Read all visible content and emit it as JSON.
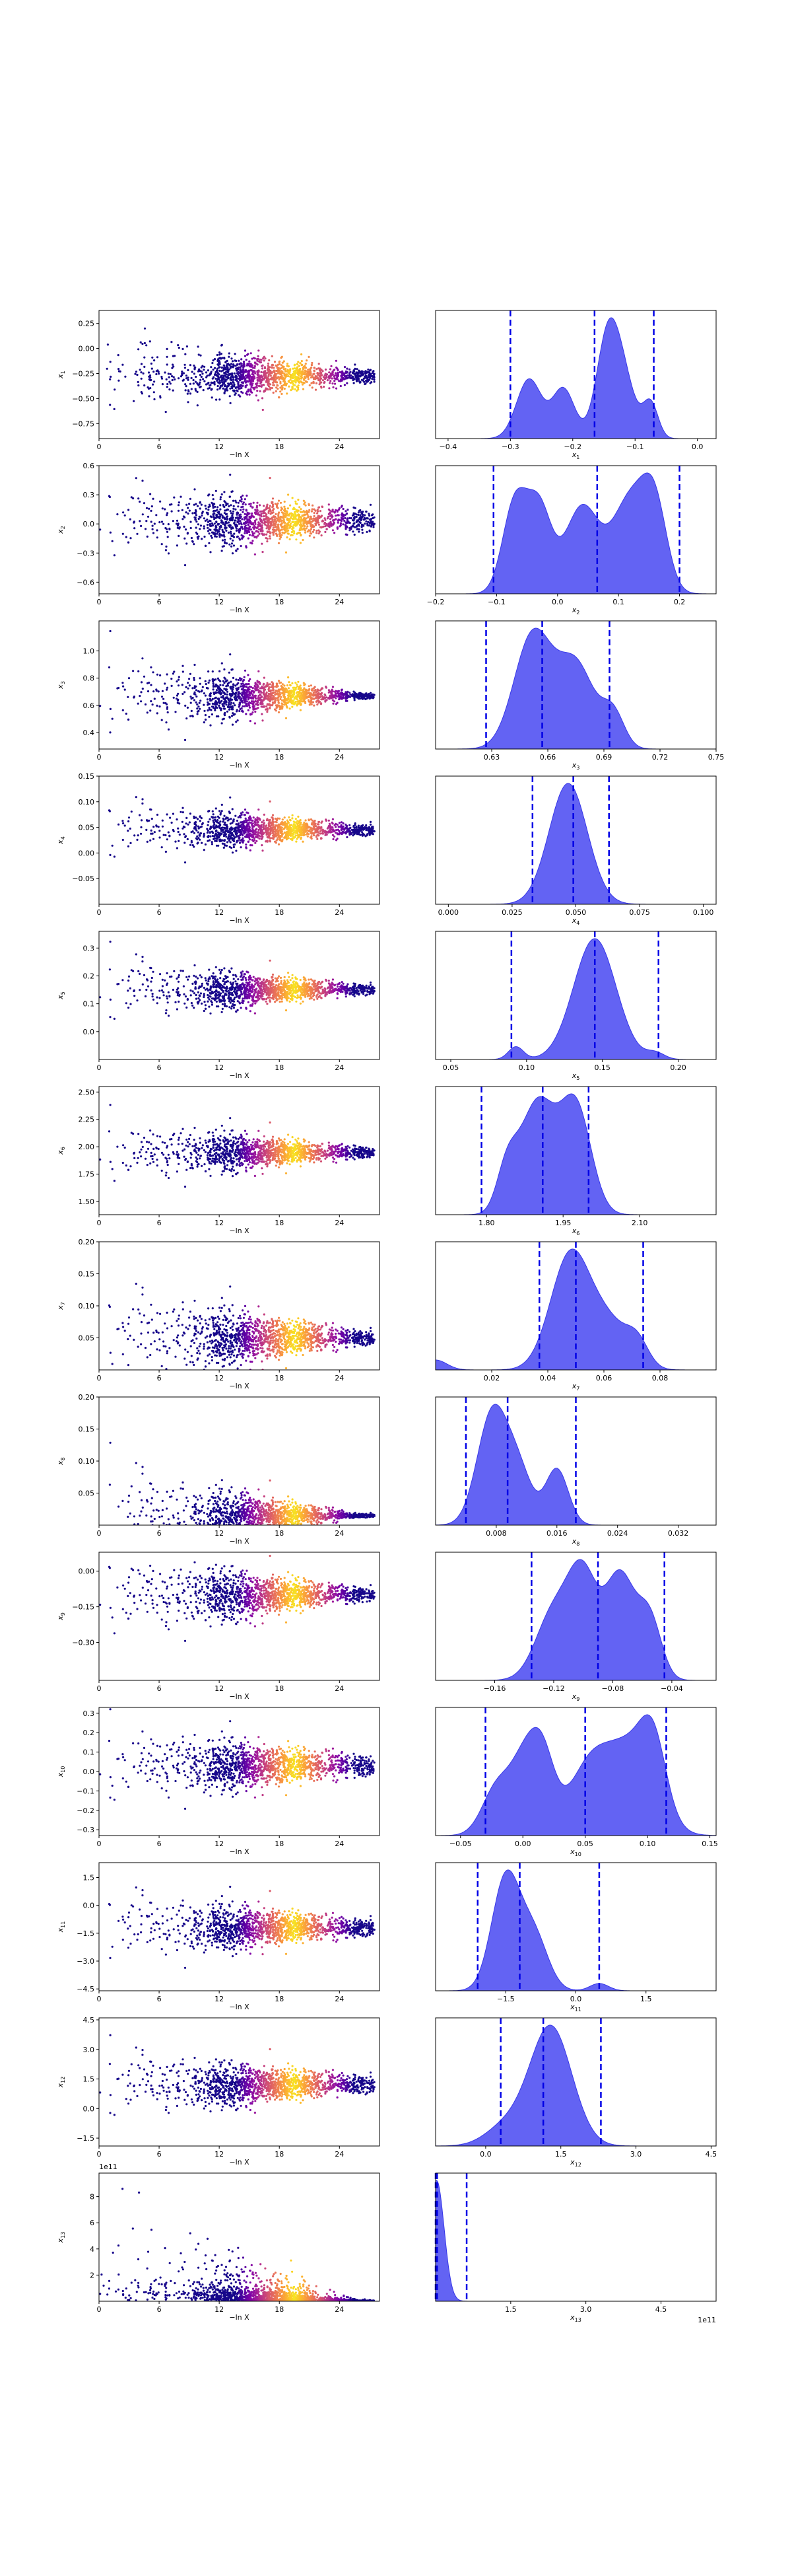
{
  "figure": {
    "xlabel_left": "−ln X",
    "left_xticks": [
      0,
      6,
      12,
      18,
      24
    ],
    "left_xlim": [
      0,
      28
    ],
    "colormap": [
      "#0d0887",
      "#4a02a0",
      "#7e03a8",
      "#a92395",
      "#cc4778",
      "#e66c5c",
      "#f89540",
      "#fdc527",
      "#f0f921"
    ]
  },
  "chart_data": [
    {
      "type": "scatter+density",
      "param": "x1",
      "xlabel": "x_1",
      "scatter": {
        "center": -0.27,
        "spread_start": 0.55,
        "spread_end": 0.1,
        "ylim": [
          -0.9,
          0.38
        ],
        "yticks": [
          0.25,
          0.0,
          -0.25,
          -0.5,
          -0.75
        ]
      },
      "posterior": {
        "xlim": [
          -0.42,
          0.03
        ],
        "xticks": [
          -0.4,
          -0.3,
          -0.2,
          -0.1,
          0.0
        ],
        "peaks": [
          [
            -0.27,
            0.02,
            0.62
          ],
          [
            -0.215,
            0.018,
            0.52
          ],
          [
            -0.145,
            0.018,
            0.93
          ],
          [
            -0.12,
            0.02,
            0.6
          ],
          [
            -0.075,
            0.012,
            0.36
          ]
        ],
        "quantiles": [
          -0.3,
          -0.165,
          -0.07
        ]
      }
    },
    {
      "type": "scatter+density",
      "param": "x2",
      "xlabel": "x_2",
      "scatter": {
        "center": 0.03,
        "spread_start": 0.6,
        "spread_end": 0.16,
        "ylim": [
          -0.72,
          0.6
        ],
        "yticks": [
          0.6,
          0.3,
          0.0,
          -0.3,
          -0.6
        ]
      },
      "posterior": {
        "xlim": [
          -0.2,
          0.26
        ],
        "xticks": [
          -0.2,
          -0.1,
          0.0,
          0.1,
          0.2
        ],
        "peaks": [
          [
            -0.07,
            0.02,
            0.78
          ],
          [
            -0.03,
            0.02,
            0.72
          ],
          [
            0.04,
            0.028,
            0.75
          ],
          [
            0.12,
            0.03,
            0.82
          ],
          [
            0.16,
            0.02,
            0.62
          ]
        ],
        "quantiles": [
          -0.105,
          0.065,
          0.2
        ]
      }
    },
    {
      "type": "scatter+density",
      "param": "x3",
      "xlabel": "x_3",
      "scatter": {
        "center": 0.67,
        "spread_start": 0.5,
        "spread_end": 0.03,
        "ylim": [
          0.28,
          1.22
        ],
        "yticks": [
          1.0,
          0.8,
          0.6,
          0.4
        ]
      },
      "posterior": {
        "xlim": [
          0.6,
          0.75
        ],
        "xticks": [
          0.63,
          0.66,
          0.69,
          0.72,
          0.75
        ],
        "peaks": [
          [
            0.652,
            0.01,
            0.95
          ],
          [
            0.675,
            0.01,
            0.7
          ],
          [
            0.695,
            0.006,
            0.28
          ]
        ],
        "quantiles": [
          0.627,
          0.657,
          0.693
        ]
      }
    },
    {
      "type": "scatter+density",
      "param": "x4",
      "xlabel": "x_4",
      "scatter": {
        "center": 0.045,
        "spread_start": 0.09,
        "spread_end": 0.015,
        "ylim": [
          -0.1,
          0.15
        ],
        "yticks": [
          0.15,
          0.1,
          0.05,
          0.0,
          -0.05
        ]
      },
      "posterior": {
        "xlim": [
          -0.005,
          0.105
        ],
        "xticks": [
          0.0,
          0.025,
          0.05,
          0.075,
          0.1
        ],
        "peaks": [
          [
            0.047,
            0.0075,
            0.95
          ]
        ],
        "quantiles": [
          0.033,
          0.049,
          0.063
        ]
      }
    },
    {
      "type": "scatter+density",
      "param": "x5",
      "xlabel": "x_5",
      "scatter": {
        "center": 0.15,
        "spread_start": 0.18,
        "spread_end": 0.025,
        "ylim": [
          -0.1,
          0.36
        ],
        "yticks": [
          0.3,
          0.2,
          0.1,
          0.0
        ]
      },
      "posterior": {
        "xlim": [
          0.04,
          0.225
        ],
        "xticks": [
          0.05,
          0.1,
          0.15,
          0.2
        ],
        "peaks": [
          [
            0.145,
            0.014,
            0.95
          ],
          [
            0.093,
            0.005,
            0.1
          ],
          [
            0.185,
            0.006,
            0.05
          ]
        ],
        "quantiles": [
          0.09,
          0.145,
          0.187
        ]
      }
    },
    {
      "type": "scatter+density",
      "param": "x6",
      "xlabel": "x_6",
      "scatter": {
        "center": 1.95,
        "spread_start": 0.45,
        "spread_end": 0.07,
        "ylim": [
          1.38,
          2.55
        ],
        "yticks": [
          2.5,
          2.25,
          2.0,
          1.75,
          1.5
        ]
      },
      "posterior": {
        "xlim": [
          1.7,
          2.25
        ],
        "xticks": [
          1.8,
          1.95,
          2.1
        ],
        "peaks": [
          [
            1.9,
            0.035,
            0.82
          ],
          [
            1.975,
            0.03,
            0.78
          ],
          [
            1.84,
            0.02,
            0.3
          ]
        ],
        "quantiles": [
          1.79,
          1.91,
          2.0
        ]
      }
    },
    {
      "type": "scatter+density",
      "param": "x7",
      "xlabel": "x_7",
      "scatter": {
        "center": 0.05,
        "spread_start": 0.12,
        "spread_end": 0.015,
        "ylim": [
          0.0,
          0.2
        ],
        "yticks": [
          0.2,
          0.15,
          0.1,
          0.05
        ]
      },
      "posterior": {
        "xlim": [
          0.0,
          0.1
        ],
        "xticks": [
          0.02,
          0.04,
          0.06,
          0.08
        ],
        "peaks": [
          [
            0.048,
            0.007,
            0.92
          ],
          [
            0.062,
            0.007,
            0.35
          ],
          [
            0.072,
            0.004,
            0.18
          ],
          [
            0.0,
            0.004,
            0.08
          ]
        ],
        "quantiles": [
          0.037,
          0.05,
          0.074
        ]
      }
    },
    {
      "type": "scatter+density",
      "param": "x8",
      "xlabel": "x_8",
      "scatter": {
        "center": 0.015,
        "spread_start": 0.12,
        "spread_end": 0.004,
        "ylim": [
          0.0,
          0.2
        ],
        "yticks": [
          0.2,
          0.15,
          0.1,
          0.05
        ]
      },
      "posterior": {
        "xlim": [
          0.0,
          0.037
        ],
        "xticks": [
          0.008,
          0.016,
          0.024,
          0.032
        ],
        "peaks": [
          [
            0.0075,
            0.002,
            0.9
          ],
          [
            0.011,
            0.0018,
            0.4
          ],
          [
            0.016,
            0.0015,
            0.45
          ]
        ],
        "quantiles": [
          0.004,
          0.0095,
          0.0185
        ]
      }
    },
    {
      "type": "scatter+density",
      "param": "x9",
      "xlabel": "x_9",
      "scatter": {
        "center": -0.1,
        "spread_start": 0.28,
        "spread_end": 0.04,
        "ylim": [
          -0.46,
          0.08
        ],
        "yticks": [
          0.0,
          -0.15,
          -0.3
        ]
      },
      "posterior": {
        "xlim": [
          -0.2,
          -0.01
        ],
        "xticks": [
          -0.16,
          -0.12,
          -0.08,
          -0.04
        ],
        "peaks": [
          [
            -0.12,
            0.012,
            0.62
          ],
          [
            -0.1,
            0.01,
            0.9
          ],
          [
            -0.075,
            0.01,
            0.95
          ],
          [
            -0.055,
            0.008,
            0.55
          ]
        ],
        "quantiles": [
          -0.135,
          -0.09,
          -0.045
        ]
      }
    },
    {
      "type": "scatter+density",
      "param": "x10",
      "xlabel": "x_10",
      "scatter": {
        "center": 0.03,
        "spread_start": 0.3,
        "spread_end": 0.07,
        "ylim": [
          -0.33,
          0.33
        ],
        "yticks": [
          0.3,
          0.2,
          0.1,
          0.0,
          -0.1,
          -0.2,
          -0.3
        ]
      },
      "posterior": {
        "xlim": [
          -0.07,
          0.155
        ],
        "xticks": [
          -0.05,
          0.0,
          0.05,
          0.1,
          0.15
        ],
        "peaks": [
          [
            -0.02,
            0.012,
            0.5
          ],
          [
            0.0,
            0.01,
            0.55
          ],
          [
            0.015,
            0.01,
            0.78
          ],
          [
            0.055,
            0.018,
            0.72
          ],
          [
            0.09,
            0.018,
            0.8
          ],
          [
            0.105,
            0.01,
            0.55
          ]
        ],
        "quantiles": [
          -0.03,
          0.05,
          0.115
        ]
      }
    },
    {
      "type": "scatter+density",
      "param": "x11",
      "xlabel": "x_11",
      "scatter": {
        "center": -1.2,
        "spread_start": 3.0,
        "spread_end": 0.6,
        "ylim": [
          -4.6,
          2.3
        ],
        "yticks": [
          1.5,
          0.0,
          -1.5,
          -3.0,
          -4.5
        ]
      },
      "posterior": {
        "xlim": [
          -3.0,
          3.0
        ],
        "xticks": [
          -1.5,
          0.0,
          1.5
        ],
        "peaks": [
          [
            -1.5,
            0.3,
            0.92
          ],
          [
            -0.9,
            0.3,
            0.45
          ],
          [
            0.5,
            0.2,
            0.06
          ]
        ],
        "quantiles": [
          -2.1,
          -1.2,
          0.5
        ]
      }
    },
    {
      "type": "scatter+density",
      "param": "x12",
      "xlabel": "x_12",
      "scatter": {
        "center": 1.2,
        "spread_start": 2.6,
        "spread_end": 0.6,
        "ylim": [
          -1.9,
          4.6
        ],
        "yticks": [
          4.5,
          3.0,
          1.5,
          0.0,
          -1.5
        ]
      },
      "posterior": {
        "xlim": [
          -1.0,
          4.6
        ],
        "xticks": [
          0.0,
          1.5,
          3.0,
          4.5
        ],
        "peaks": [
          [
            1.3,
            0.42,
            0.92
          ],
          [
            0.4,
            0.4,
            0.15
          ]
        ],
        "quantiles": [
          0.3,
          1.15,
          2.3
        ]
      }
    },
    {
      "type": "scatter+density",
      "param": "x13",
      "xlabel": "x_13",
      "scale_label": "1e11",
      "scatter": {
        "center": 0.02,
        "spread_start": 4.0,
        "spread_end": 0.05,
        "ylim": [
          0.0,
          9.8
        ],
        "yticks": [
          8,
          6,
          4,
          2
        ],
        "skewed": true
      },
      "posterior": {
        "xlim": [
          0.0,
          5.6
        ],
        "xticks": [
          1.5,
          3.0,
          4.5
        ],
        "peaks": [
          [
            0.02,
            0.15,
            0.95
          ]
        ],
        "quantiles": [
          0.0,
          0.03,
          0.62
        ]
      }
    }
  ]
}
